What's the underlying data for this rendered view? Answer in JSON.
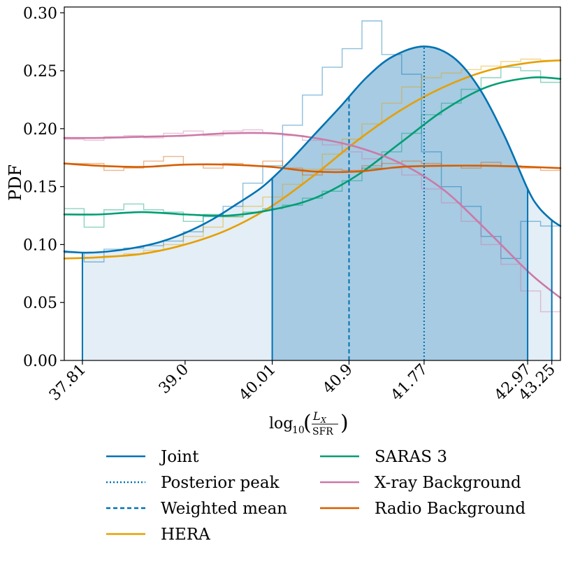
{
  "chart_data": {
    "type": "line",
    "title": "",
    "xlabel_parts": {
      "prefix": "log",
      "sub": "10",
      "numerator": "L",
      "numerator_sub": "X",
      "denominator": "SFR"
    },
    "ylabel": "PDF",
    "xlim": [
      37.6,
      43.35
    ],
    "ylim": [
      0.0,
      0.305
    ],
    "yticks": [
      0.0,
      0.05,
      0.1,
      0.15,
      0.2,
      0.25,
      0.3
    ],
    "ytick_labels": [
      "0.00",
      "0.05",
      "0.10",
      "0.15",
      "0.20",
      "0.25",
      "0.30"
    ],
    "xticks": [
      37.81,
      39.0,
      40.01,
      40.9,
      41.77,
      42.97,
      43.25
    ],
    "xtick_labels": [
      "37.81",
      "39.0",
      "40.01",
      "40.9",
      "41.77",
      "42.97",
      "43.25"
    ],
    "markers": {
      "interval_inner": [
        40.01,
        42.97
      ],
      "interval_outer": [
        37.81,
        43.25
      ],
      "posterior_peak": 41.77,
      "weighted_mean": 40.9
    },
    "histogram_edges": [
      37.6,
      37.83,
      38.06,
      38.29,
      38.52,
      38.75,
      38.98,
      39.21,
      39.44,
      39.67,
      39.9,
      40.13,
      40.36,
      40.59,
      40.82,
      41.05,
      41.28,
      41.51,
      41.74,
      41.97,
      42.2,
      42.43,
      42.66,
      42.89,
      43.12,
      43.35
    ],
    "series": [
      {
        "name": "Joint",
        "color": "#0072b2",
        "style": "solid",
        "x": [
          37.6,
          37.85,
          38.1,
          38.4,
          38.7,
          39.0,
          39.3,
          39.6,
          39.9,
          40.2,
          40.5,
          40.8,
          41.1,
          41.4,
          41.77,
          42.1,
          42.4,
          42.7,
          42.97,
          43.1,
          43.25,
          43.35
        ],
        "y": [
          0.094,
          0.093,
          0.094,
          0.097,
          0.102,
          0.11,
          0.121,
          0.135,
          0.15,
          0.171,
          0.195,
          0.219,
          0.244,
          0.262,
          0.271,
          0.262,
          0.236,
          0.194,
          0.148,
          0.132,
          0.121,
          0.116
        ],
        "hist": [
          0.093,
          0.085,
          0.096,
          0.097,
          0.099,
          0.103,
          0.111,
          0.124,
          0.133,
          0.153,
          0.168,
          0.203,
          0.229,
          0.253,
          0.269,
          0.293,
          0.264,
          0.247,
          0.18,
          0.15,
          0.133,
          0.107,
          0.088,
          0.12,
          0.116
        ]
      },
      {
        "name": "HERA",
        "color": "#e69f00",
        "style": "solid",
        "x": [
          37.6,
          38.0,
          38.5,
          39.0,
          39.5,
          40.0,
          40.5,
          41.0,
          41.5,
          42.0,
          42.5,
          43.0,
          43.35
        ],
        "y": [
          0.088,
          0.089,
          0.092,
          0.1,
          0.113,
          0.133,
          0.16,
          0.19,
          0.216,
          0.236,
          0.25,
          0.257,
          0.259
        ],
        "hist": [
          0.088,
          0.089,
          0.09,
          0.092,
          0.095,
          0.1,
          0.107,
          0.115,
          0.124,
          0.133,
          0.141,
          0.152,
          0.165,
          0.178,
          0.191,
          0.204,
          0.222,
          0.236,
          0.244,
          0.248,
          0.251,
          0.254,
          0.258,
          0.26,
          0.259
        ]
      },
      {
        "name": "SARAS 3",
        "color": "#009e73",
        "style": "solid",
        "x": [
          37.6,
          38.0,
          38.5,
          39.0,
          39.5,
          40.0,
          40.5,
          41.0,
          41.5,
          42.0,
          42.5,
          43.0,
          43.35
        ],
        "y": [
          0.126,
          0.126,
          0.128,
          0.126,
          0.125,
          0.13,
          0.14,
          0.16,
          0.188,
          0.216,
          0.236,
          0.244,
          0.243
        ],
        "hist": [
          0.131,
          0.115,
          0.13,
          0.135,
          0.13,
          0.128,
          0.12,
          0.126,
          0.124,
          0.128,
          0.131,
          0.134,
          0.14,
          0.146,
          0.155,
          0.166,
          0.18,
          0.196,
          0.212,
          0.222,
          0.234,
          0.244,
          0.253,
          0.25,
          0.24
        ]
      },
      {
        "name": "X-ray Background",
        "color": "#cc79a7",
        "style": "solid",
        "x": [
          37.6,
          38.0,
          38.5,
          39.0,
          39.5,
          40.0,
          40.5,
          41.0,
          41.5,
          42.0,
          42.5,
          43.0,
          43.35
        ],
        "y": [
          0.192,
          0.192,
          0.193,
          0.194,
          0.196,
          0.196,
          0.192,
          0.184,
          0.17,
          0.147,
          0.112,
          0.075,
          0.054
        ],
        "hist": [
          0.191,
          0.19,
          0.193,
          0.194,
          0.192,
          0.196,
          0.198,
          0.194,
          0.198,
          0.199,
          0.196,
          0.194,
          0.19,
          0.186,
          0.18,
          0.174,
          0.166,
          0.16,
          0.148,
          0.136,
          0.12,
          0.1,
          0.083,
          0.06,
          0.042
        ]
      },
      {
        "name": "Radio Background",
        "color": "#d55e00",
        "style": "solid",
        "x": [
          37.6,
          38.0,
          38.5,
          39.0,
          39.5,
          40.0,
          40.5,
          41.0,
          41.5,
          42.0,
          42.5,
          43.0,
          43.35
        ],
        "y": [
          0.17,
          0.168,
          0.167,
          0.169,
          0.169,
          0.167,
          0.163,
          0.163,
          0.167,
          0.168,
          0.168,
          0.167,
          0.166
        ],
        "hist": [
          0.17,
          0.17,
          0.164,
          0.166,
          0.172,
          0.176,
          0.169,
          0.166,
          0.17,
          0.168,
          0.172,
          0.166,
          0.16,
          0.165,
          0.164,
          0.168,
          0.17,
          0.172,
          0.17,
          0.168,
          0.166,
          0.171,
          0.168,
          0.166,
          0.164
        ]
      }
    ],
    "legend": {
      "placement": "bottom-center",
      "entries": [
        {
          "label": "Joint",
          "color": "#0072b2",
          "style": "solid"
        },
        {
          "label": "Posterior peak",
          "color": "#0072b2",
          "style": "dotted"
        },
        {
          "label": "Weighted mean",
          "color": "#0072b2",
          "style": "dashed"
        },
        {
          "label": "HERA",
          "color": "#e69f00",
          "style": "solid"
        },
        {
          "label": "SARAS 3",
          "color": "#009e73",
          "style": "solid"
        },
        {
          "label": "X-ray Background",
          "color": "#cc79a7",
          "style": "solid"
        },
        {
          "label": "Radio Background",
          "color": "#d55e00",
          "style": "solid"
        }
      ]
    },
    "fill_colors": {
      "light": "#e3eef6",
      "dark": "#a6cbe3"
    }
  }
}
